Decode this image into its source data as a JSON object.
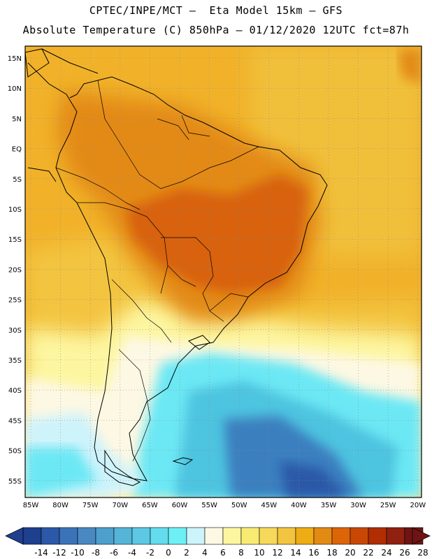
{
  "header": {
    "title_line1": "CPTEC/INPE/MCT –  Eta Model 15km – GFS",
    "title_line2": "Absolute Temperature (C) 850hPa – 01/12/2020 12UTC fct=87h"
  },
  "axes": {
    "lat_labels": [
      "15N",
      "10N",
      "5N",
      "EQ",
      "5S",
      "10S",
      "15S",
      "20S",
      "25S",
      "30S",
      "35S",
      "40S",
      "45S",
      "50S",
      "55S"
    ],
    "lon_labels": [
      "85W",
      "80W",
      "75W",
      "70W",
      "65W",
      "60W",
      "55W",
      "50W",
      "45W",
      "40W",
      "35W",
      "30W",
      "25W",
      "20W"
    ]
  },
  "colorbar": {
    "labels": [
      "-14",
      "-12",
      "-10",
      "-8",
      "-6",
      "-4",
      "-2",
      "0",
      "2",
      "4",
      "6",
      "8",
      "10",
      "12",
      "14",
      "16",
      "18",
      "20",
      "22",
      "24",
      "26",
      "28"
    ],
    "colors": [
      "#1f3f8f",
      "#2b58a8",
      "#3b73b8",
      "#4a88c2",
      "#4d9fcc",
      "#55b4d8",
      "#5cc8e4",
      "#63dcee",
      "#6cf0f6",
      "#cdf3fb",
      "#fdf8e3",
      "#fdf6a0",
      "#f9ea72",
      "#f6d85a",
      "#f3c43f",
      "#f0ac14",
      "#e38a14",
      "#dc6508",
      "#c94705",
      "#b02e02",
      "#902010",
      "#6f1414"
    ]
  },
  "map_colors": {
    "warm": "#f3a612",
    "warm_light": "#f1c03a",
    "warm_dark": "#e38a14",
    "hot": "#d8620a",
    "pale": "#fdf6a0",
    "cream": "#fdf8e3",
    "cyan": "#6ce8f4",
    "cyan_mid": "#4dc4e0",
    "blue": "#3b7fbf",
    "blue_dark": "#2b58a8"
  }
}
